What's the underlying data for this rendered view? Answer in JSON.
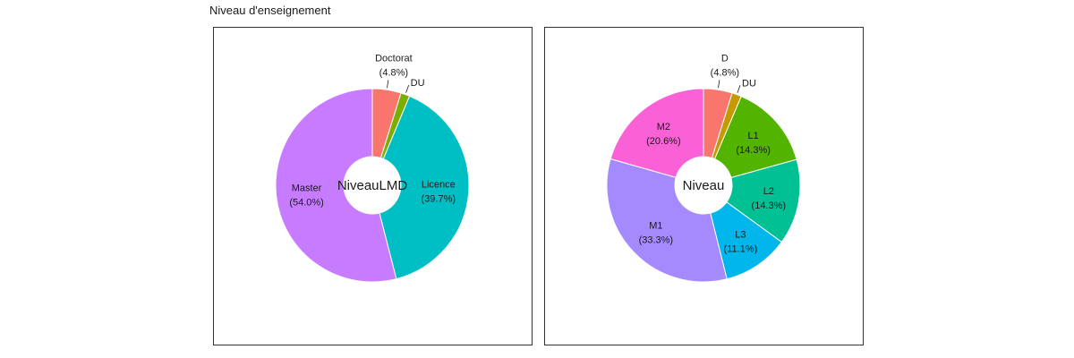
{
  "title": "Niveau d'enseignement",
  "chart_data": [
    {
      "type": "pie",
      "center_label": "NiveauLMD",
      "slices": [
        {
          "name": "Doctorat",
          "label": "(4.8%)",
          "value": 4.8,
          "color": "#F8766D"
        },
        {
          "name": "DU",
          "label": "",
          "value": 1.5,
          "color": "#7CAE00"
        },
        {
          "name": "Licence",
          "label": "(39.7%)",
          "value": 39.7,
          "color": "#00BFC4"
        },
        {
          "name": "Master",
          "label": "(54.0%)",
          "value": 54.0,
          "color": "#C77CFF"
        }
      ]
    },
    {
      "type": "pie",
      "center_label": "Niveau",
      "slices": [
        {
          "name": "D",
          "label": "(4.8%)",
          "value": 4.8,
          "color": "#F8766D"
        },
        {
          "name": "DU",
          "label": "",
          "value": 1.6,
          "color": "#C49A00"
        },
        {
          "name": "L1",
          "label": "(14.3%)",
          "value": 14.3,
          "color": "#53B400"
        },
        {
          "name": "L2",
          "label": "(14.3%)",
          "value": 14.3,
          "color": "#00C094"
        },
        {
          "name": "L3",
          "label": "(11.1%)",
          "value": 11.1,
          "color": "#00B6EB"
        },
        {
          "name": "M1",
          "label": "(33.3%)",
          "value": 33.3,
          "color": "#A58AFF"
        },
        {
          "name": "M2",
          "label": "(20.6%)",
          "value": 20.6,
          "color": "#FB61D7"
        }
      ]
    }
  ]
}
